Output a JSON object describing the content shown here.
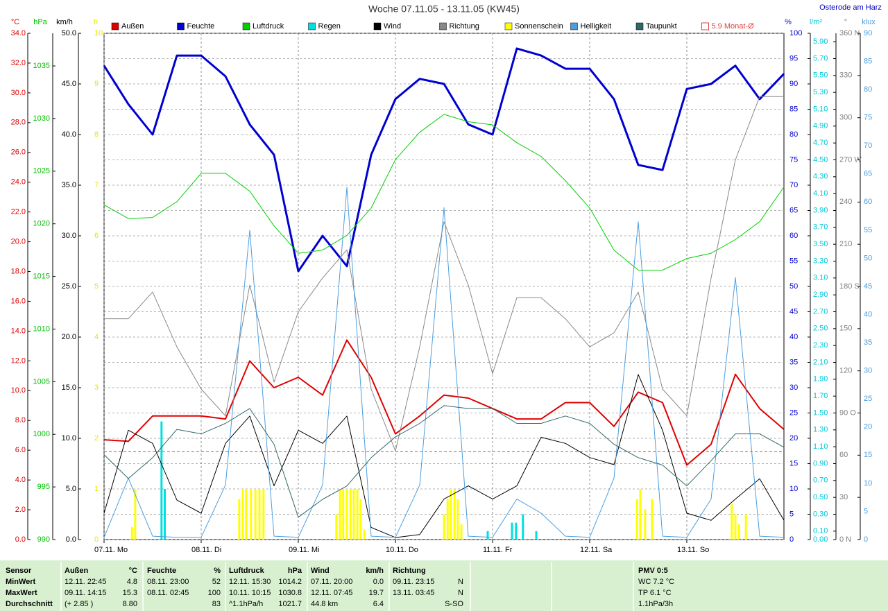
{
  "chart_data": {
    "type": "line",
    "title": "Woche 07.11.05 - 13.11.05 (KW45)",
    "location": "Osterode am Harz",
    "x": [
      0,
      6,
      12,
      18,
      24,
      30,
      36,
      42,
      48,
      54,
      60,
      66,
      72,
      78,
      84,
      90,
      96,
      102,
      108,
      114,
      120,
      126,
      132,
      138,
      144,
      150,
      156,
      162,
      168
    ],
    "xlim": [
      0,
      168
    ],
    "xticks": [
      {
        "value": 0,
        "label": "07.11. Mo"
      },
      {
        "value": 24,
        "label": "08.11. Di"
      },
      {
        "value": 48,
        "label": "09.11. Mi"
      },
      {
        "value": 72,
        "label": "10.11. Do"
      },
      {
        "value": 96,
        "label": "11.11. Fr"
      },
      {
        "value": 120,
        "label": "12.11. Sa"
      },
      {
        "value": 144,
        "label": "13.11. So"
      }
    ],
    "grid": true,
    "y_axes": [
      {
        "unit": "°C",
        "color": "#e00000",
        "lim": [
          0,
          34
        ],
        "ticks": [
          {
            "value": 0,
            "label": "0.0"
          },
          {
            "value": 2,
            "label": "2.0"
          },
          {
            "value": 4,
            "label": "4.0"
          },
          {
            "value": 6,
            "label": "6.0"
          },
          {
            "value": 8,
            "label": "8.0"
          },
          {
            "value": 10,
            "label": "10.0"
          },
          {
            "value": 12,
            "label": "12.0"
          },
          {
            "value": 14,
            "label": "14.0"
          },
          {
            "value": 16,
            "label": "16.0"
          },
          {
            "value": 18,
            "label": "18.0"
          },
          {
            "value": 20,
            "label": "20.0"
          },
          {
            "value": 22,
            "label": "22.0"
          },
          {
            "value": 24,
            "label": "24.0"
          },
          {
            "value": 26,
            "label": "26.0"
          },
          {
            "value": 28,
            "label": "28.0"
          },
          {
            "value": 30,
            "label": "30.0"
          },
          {
            "value": 32,
            "label": "32.0"
          },
          {
            "value": 34,
            "label": "34.0"
          }
        ]
      },
      {
        "unit": "hPa",
        "color": "#00c000",
        "lim": [
          990,
          1038.1
        ],
        "ticks": [
          990,
          995,
          1000,
          1005,
          1010,
          1015,
          1020,
          1025,
          1030,
          1035
        ]
      },
      {
        "unit": "km/h",
        "color": "#000000",
        "lim": [
          0,
          50
        ],
        "ticks": [
          {
            "value": 0,
            "label": "0.0"
          },
          {
            "value": 5,
            "label": "5.0"
          },
          {
            "value": 10,
            "label": "10.0"
          },
          {
            "value": 15,
            "label": "15.0"
          },
          {
            "value": 20,
            "label": "20.0"
          },
          {
            "value": 25,
            "label": "25.0"
          },
          {
            "value": 30,
            "label": "30.0"
          },
          {
            "value": 35,
            "label": "35.0"
          },
          {
            "value": 40,
            "label": "40.0"
          },
          {
            "value": 45,
            "label": "45.0"
          },
          {
            "value": 50,
            "label": "50.0"
          }
        ]
      },
      {
        "unit": "h",
        "color": "#e8e800",
        "lim": [
          0,
          10
        ],
        "ticks": [
          0,
          1,
          2,
          3,
          4,
          5,
          6,
          7,
          8,
          9,
          10
        ]
      },
      {
        "unit": "%",
        "color": "#0000d0",
        "lim": [
          0,
          100
        ],
        "ticks": [
          0,
          5,
          10,
          15,
          20,
          25,
          30,
          35,
          40,
          45,
          50,
          55,
          60,
          65,
          70,
          75,
          80,
          85,
          90,
          95,
          100
        ]
      },
      {
        "unit": "l/m²",
        "color": "#00c8d8",
        "lim": [
          0,
          6
        ],
        "ticks": [
          {
            "value": 0,
            "label": "0.00"
          },
          {
            "value": 0.1,
            "label": "0.10"
          },
          {
            "value": 0.3,
            "label": "0.30"
          },
          {
            "value": 0.5,
            "label": "0.50"
          },
          {
            "value": 0.7,
            "label": "0.70"
          },
          {
            "value": 0.9,
            "label": "0.90"
          },
          {
            "value": 1.1,
            "label": "1.10"
          },
          {
            "value": 1.3,
            "label": "1.30"
          },
          {
            "value": 1.5,
            "label": "1.50"
          },
          {
            "value": 1.7,
            "label": "1.70"
          },
          {
            "value": 1.9,
            "label": "1.90"
          },
          {
            "value": 2.1,
            "label": "2.10"
          },
          {
            "value": 2.3,
            "label": "2.30"
          },
          {
            "value": 2.5,
            "label": "2.50"
          },
          {
            "value": 2.7,
            "label": "2.70"
          },
          {
            "value": 2.9,
            "label": "2.90"
          },
          {
            "value": 3.1,
            "label": "3.10"
          },
          {
            "value": 3.3,
            "label": "3.30"
          },
          {
            "value": 3.5,
            "label": "3.50"
          },
          {
            "value": 3.7,
            "label": "3.70"
          },
          {
            "value": 3.9,
            "label": "3.90"
          },
          {
            "value": 4.1,
            "label": "4.10"
          },
          {
            "value": 4.3,
            "label": "4.30"
          },
          {
            "value": 4.5,
            "label": "4.50"
          },
          {
            "value": 4.7,
            "label": "4.70"
          },
          {
            "value": 4.9,
            "label": "4.90"
          },
          {
            "value": 5.1,
            "label": "5.10"
          },
          {
            "value": 5.3,
            "label": "5.30"
          },
          {
            "value": 5.5,
            "label": "5.50"
          },
          {
            "value": 5.7,
            "label": "5.70"
          },
          {
            "value": 5.9,
            "label": "5.90"
          }
        ]
      },
      {
        "unit": "°",
        "color": "#808080",
        "lim": [
          0,
          360
        ],
        "ticks": [
          {
            "value": 0,
            "label": "0 N"
          },
          30,
          60,
          {
            "value": 90,
            "label": "90 O"
          },
          120,
          150,
          {
            "value": 180,
            "label": "180 S"
          },
          210,
          240,
          {
            "value": 270,
            "label": "270 W"
          },
          300,
          330,
          {
            "value": 360,
            "label": "360 N"
          }
        ]
      },
      {
        "unit": "klux",
        "color": "#4a9ee0",
        "lim": [
          0,
          90
        ],
        "ticks": [
          0,
          5,
          10,
          15,
          20,
          25,
          30,
          35,
          40,
          45,
          50,
          55,
          60,
          65,
          70,
          75,
          80,
          85,
          90
        ]
      }
    ],
    "series": [
      {
        "name": "Außen",
        "color": "#e00000",
        "axis": 0,
        "width": 2,
        "values": [
          6.7,
          6.6,
          8.3,
          8.3,
          8.3,
          8.1,
          12.0,
          10.2,
          10.9,
          9.7,
          13.4,
          10.9,
          7.1,
          8.3,
          9.7,
          9.5,
          8.8,
          8.1,
          8.1,
          9.2,
          9.2,
          7.6,
          9.9,
          9.2,
          5.0,
          6.4,
          11.1,
          8.8,
          7.4
        ]
      },
      {
        "name": "Feuchte",
        "color": "#0000d0",
        "axis": 4,
        "width": 3,
        "values": [
          93.6,
          86,
          80,
          95.6,
          95.6,
          91.5,
          82,
          76,
          53,
          60,
          54,
          76,
          87,
          91,
          90,
          82,
          80,
          97,
          95.6,
          93,
          93,
          87,
          74,
          73,
          89,
          90,
          93.6,
          87,
          92
        ]
      },
      {
        "name": "Luftdruck",
        "color": "#00d000",
        "axis": 1,
        "width": 1,
        "values": [
          1021.8,
          1020.5,
          1020.6,
          1022.1,
          1024.8,
          1024.8,
          1023.1,
          1019.8,
          1017.2,
          1017.5,
          1018.9,
          1021.5,
          1026.1,
          1028.7,
          1030.4,
          1029.7,
          1029.4,
          1027.7,
          1026.4,
          1024.1,
          1021.5,
          1017.5,
          1015.6,
          1015.6,
          1016.7,
          1017.2,
          1018.5,
          1020.2,
          1023.5
        ]
      },
      {
        "name": "Regen",
        "type": "bar",
        "color": "#00e0e0",
        "axis": 5,
        "x": [
          14.2,
          15,
          94.8,
          100.8,
          101.8,
          103.5,
          106.8
        ],
        "values": [
          1.4,
          0.6,
          0.1,
          0.2,
          0.2,
          0.3,
          0.1
        ]
      },
      {
        "name": "Wind",
        "color": "#000000",
        "axis": 2,
        "width": 1,
        "values": [
          2.6,
          10.8,
          9.5,
          3.9,
          2.6,
          9.5,
          12.2,
          5.3,
          10.8,
          9.5,
          12.2,
          1.2,
          0.2,
          0.5,
          4.0,
          5.3,
          4.0,
          5.3,
          10.1,
          9.5,
          8.1,
          7.4,
          16.3,
          10.8,
          2.6,
          1.9,
          4.0,
          6.0,
          1.9
        ]
      },
      {
        "name": "Richtung",
        "color": "#888888",
        "axis": 6,
        "width": 1,
        "values": [
          157,
          157,
          176,
          137,
          107,
          88,
          181,
          112,
          162,
          186,
          206,
          107,
          63,
          137,
          226,
          181,
          118,
          172,
          172,
          157,
          137,
          147,
          176,
          107,
          88,
          186,
          270,
          315,
          315
        ]
      },
      {
        "name": "Sonnenschein",
        "type": "bar",
        "color": "#ffff00",
        "axis": 3,
        "x": [
          6.9,
          7.7,
          33.4,
          34.3,
          35.1,
          36.3,
          37.4,
          38.4,
          39.4,
          57.4,
          58.3,
          59.1,
          60,
          60.9,
          61.7,
          62.6,
          63.4,
          64.3,
          84,
          84.9,
          85.7,
          86.6,
          87.4,
          88.3,
          131.7,
          132.5,
          133.7,
          135.4,
          155.1,
          156,
          156.9,
          158.6
        ],
        "values": [
          0.25,
          1,
          0.8,
          1,
          1,
          1,
          1,
          1,
          1,
          0.5,
          1,
          1,
          1,
          1,
          1,
          1,
          0.8,
          0.2,
          0.5,
          0.8,
          1,
          1,
          0.8,
          0.3,
          0.8,
          1,
          0.6,
          0.8,
          0.7,
          0.5,
          0.3,
          0.5
        ]
      },
      {
        "name": "Helligkeit",
        "color": "#4a9ee0",
        "axis": 7,
        "width": 1,
        "values": [
          0.4,
          10.9,
          0.6,
          0.4,
          0.4,
          9.7,
          55,
          0.6,
          0.4,
          9.7,
          62.6,
          0.6,
          0.4,
          9.7,
          59,
          0.6,
          0.4,
          7.2,
          4.7,
          0.6,
          0.4,
          10.9,
          56.5,
          0.6,
          0.4,
          7.2,
          46.6,
          0.6,
          0.4
        ]
      },
      {
        "name": "Taupunkt",
        "color": "#306868",
        "axis": 0,
        "width": 1,
        "values": [
          5.7,
          4.1,
          5.5,
          7.4,
          7.1,
          7.8,
          8.8,
          6.4,
          1.5,
          2.7,
          3.6,
          5.5,
          6.9,
          7.8,
          9.0,
          8.8,
          8.8,
          7.8,
          7.8,
          8.3,
          7.8,
          6.4,
          5.5,
          5.0,
          3.6,
          5.3,
          7.1,
          7.1,
          6.2
        ]
      }
    ],
    "reference_line": {
      "label": "5.9 Monat-Ø",
      "value": 5.9,
      "axis": 0,
      "color": "#e04040"
    }
  },
  "table": {
    "rows": [
      [
        "Sensor",
        "Außen",
        "°C",
        "Feuchte",
        "%",
        "Luftdruck",
        "hPa",
        "Wind",
        "km/h",
        "Richtung",
        null,
        "PMV 0:5"
      ],
      [
        "MinWert",
        "12.11.  22:45",
        "4.8",
        "08.11.  23:00",
        "52",
        "12.11.  15:30",
        "1014.2",
        "07.11.  20:00",
        "0.0",
        "09.11.  23:15",
        "N",
        "WC 7.2 °C"
      ],
      [
        "MaxWert",
        "09.11.  14:15",
        "15.3",
        "08.11.  02:45",
        "100",
        "10.11.  10:15",
        "1030.8",
        "12.11.  07:45",
        "19.7",
        "13.11.  03:45",
        "N",
        "TP 6.1 °C"
      ],
      [
        "Durchschnitt",
        "(+ 2.85 )",
        "8.80",
        null,
        "83",
        "^1.1hPa/h",
        "1021.7",
        "44.8 km",
        "6.4",
        null,
        "S-SO",
        "1.1hPa/3h"
      ]
    ]
  }
}
